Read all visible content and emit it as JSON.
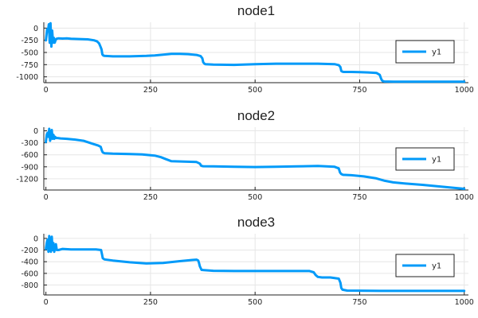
{
  "chart_data": [
    {
      "type": "line",
      "title": "node1",
      "xlabel": "",
      "ylabel": "",
      "xlim": [
        -5,
        1010
      ],
      "ylim": [
        -1120,
        120
      ],
      "xticks": [
        0,
        250,
        500,
        750,
        1000
      ],
      "xtick_labels": [
        "0",
        "250",
        "500",
        "750",
        "1000"
      ],
      "yticks": [
        0,
        -250,
        -500,
        -750,
        -1000
      ],
      "ytick_labels": [
        "0",
        "-250",
        "-500",
        "-750",
        "-1000"
      ],
      "grid": true,
      "legend": "right",
      "color": "#009af9",
      "series": [
        {
          "name": "y1",
          "x": [
            0,
            3,
            5,
            7,
            9,
            11,
            13,
            15,
            17,
            19,
            21,
            23,
            25,
            30,
            40,
            50,
            60,
            80,
            100,
            115,
            122,
            127,
            131,
            133,
            135,
            137,
            140,
            160,
            200,
            240,
            260,
            280,
            300,
            320,
            340,
            360,
            370,
            374,
            376,
            379,
            381,
            400,
            450,
            500,
            550,
            600,
            650,
            690,
            700,
            704,
            706,
            709,
            712,
            730,
            750,
            770,
            790,
            798,
            801,
            803,
            806,
            809,
            830,
            900,
            1000
          ],
          "y": [
            -250,
            -20,
            -50,
            80,
            -300,
            100,
            -380,
            -50,
            -300,
            -200,
            -300,
            -250,
            -220,
            -210,
            -215,
            -210,
            -220,
            -225,
            -230,
            -250,
            -270,
            -310,
            -390,
            -440,
            -540,
            -560,
            -570,
            -580,
            -580,
            -570,
            -560,
            -545,
            -530,
            -530,
            -535,
            -550,
            -575,
            -620,
            -700,
            -730,
            -740,
            -750,
            -755,
            -740,
            -730,
            -730,
            -730,
            -740,
            -760,
            -800,
            -880,
            -895,
            -900,
            -900,
            -905,
            -910,
            -920,
            -960,
            -1030,
            -1070,
            -1090,
            -1095,
            -1100,
            -1100,
            -1100
          ]
        }
      ]
    },
    {
      "type": "line",
      "title": "node2",
      "xlabel": "",
      "ylabel": "",
      "xlim": [
        -5,
        1010
      ],
      "ylim": [
        -1480,
        90
      ],
      "xticks": [
        0,
        250,
        500,
        750,
        1000
      ],
      "xtick_labels": [
        "0",
        "250",
        "500",
        "750",
        "1000"
      ],
      "yticks": [
        0,
        -300,
        -600,
        -900,
        -1200
      ],
      "ytick_labels": [
        "0",
        "-300",
        "-600",
        "-900",
        "-1200"
      ],
      "grid": true,
      "legend": "right",
      "color": "#009af9",
      "series": [
        {
          "name": "y1",
          "x": [
            0,
            2,
            4,
            6,
            8,
            10,
            12,
            14,
            16,
            18,
            20,
            22,
            24,
            28,
            35,
            50,
            70,
            90,
            110,
            125,
            131,
            134,
            136,
            138,
            140,
            160,
            200,
            230,
            260,
            275,
            285,
            300,
            330,
            360,
            368,
            371,
            373,
            376,
            400,
            450,
            500,
            550,
            600,
            650,
            690,
            700,
            703,
            706,
            710,
            730,
            760,
            790,
            810,
            830,
            860,
            900,
            950,
            1000
          ],
          "y": [
            -280,
            -100,
            -50,
            -150,
            50,
            -250,
            -150,
            20,
            -200,
            -100,
            -200,
            -150,
            -180,
            -180,
            -190,
            -200,
            -220,
            -250,
            -320,
            -370,
            -400,
            -500,
            -540,
            -550,
            -560,
            -570,
            -580,
            -590,
            -620,
            -660,
            -700,
            -760,
            -770,
            -780,
            -820,
            -870,
            -880,
            -885,
            -890,
            -900,
            -905,
            -900,
            -890,
            -880,
            -900,
            -940,
            -1040,
            -1080,
            -1100,
            -1110,
            -1140,
            -1190,
            -1250,
            -1290,
            -1320,
            -1350,
            -1400,
            -1450
          ]
        }
      ]
    },
    {
      "type": "line",
      "title": "node3",
      "xlabel": "",
      "ylabel": "",
      "xlim": [
        -5,
        1010
      ],
      "ylim": [
        -970,
        80
      ],
      "xticks": [
        0,
        250,
        500,
        750,
        1000
      ],
      "xtick_labels": [
        "0",
        "250",
        "500",
        "750",
        "1000"
      ],
      "yticks": [
        0,
        -200,
        -400,
        -600,
        -800
      ],
      "ytick_labels": [
        "0",
        "-200",
        "-400",
        "-600",
        "-800"
      ],
      "grid": true,
      "legend": "right",
      "color": "#009af9",
      "series": [
        {
          "name": "y1",
          "x": [
            0,
            2,
            4,
            6,
            8,
            10,
            12,
            14,
            16,
            18,
            20,
            22,
            24,
            26,
            30,
            40,
            60,
            80,
            100,
            120,
            132,
            134,
            136,
            140,
            160,
            200,
            240,
            280,
            320,
            350,
            360,
            364,
            366,
            368,
            372,
            400,
            450,
            500,
            550,
            600,
            630,
            640,
            645,
            650,
            660,
            680,
            700,
            704,
            706,
            709,
            720,
            800,
            900,
            1000
          ],
          "y": [
            -180,
            -80,
            -20,
            -230,
            40,
            -120,
            -230,
            30,
            -200,
            -80,
            -230,
            -150,
            -100,
            -200,
            -200,
            -180,
            -190,
            -190,
            -190,
            -190,
            -200,
            -270,
            -340,
            -360,
            -380,
            -410,
            -430,
            -420,
            -390,
            -370,
            -365,
            -380,
            -420,
            -480,
            -540,
            -555,
            -560,
            -560,
            -560,
            -560,
            -560,
            -580,
            -630,
            -660,
            -670,
            -670,
            -690,
            -760,
            -850,
            -880,
            -895,
            -900,
            -900,
            -900
          ]
        }
      ]
    }
  ]
}
